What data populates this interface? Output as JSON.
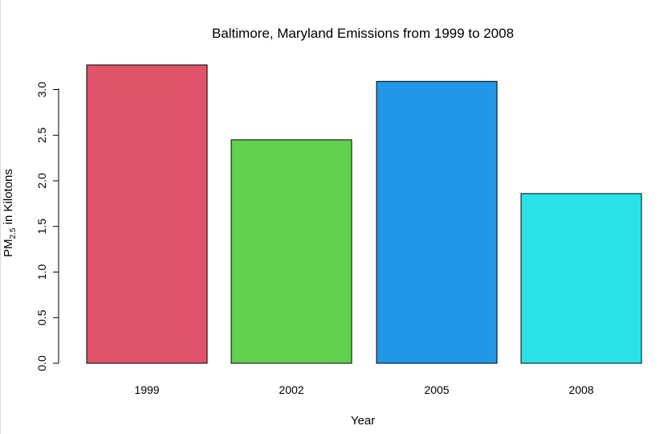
{
  "chart_data": {
    "type": "bar",
    "title": "Baltimore, Maryland Emissions from 1999 to 2008",
    "xlabel": "Year",
    "ylabel": {
      "main": "PM",
      "subscript": "2.5",
      "suffix": " in Kilotons"
    },
    "categories": [
      "1999",
      "2002",
      "2005",
      "2008"
    ],
    "values": [
      3.27,
      2.45,
      3.09,
      1.86
    ],
    "colors": [
      "#DF536B",
      "#61D04F",
      "#2297E6",
      "#28E2E5"
    ],
    "ylim": [
      0,
      3.3
    ],
    "yticks": [
      "0.0",
      "0.5",
      "1.0",
      "1.5",
      "2.0",
      "2.5",
      "3.0"
    ],
    "grid": false
  }
}
